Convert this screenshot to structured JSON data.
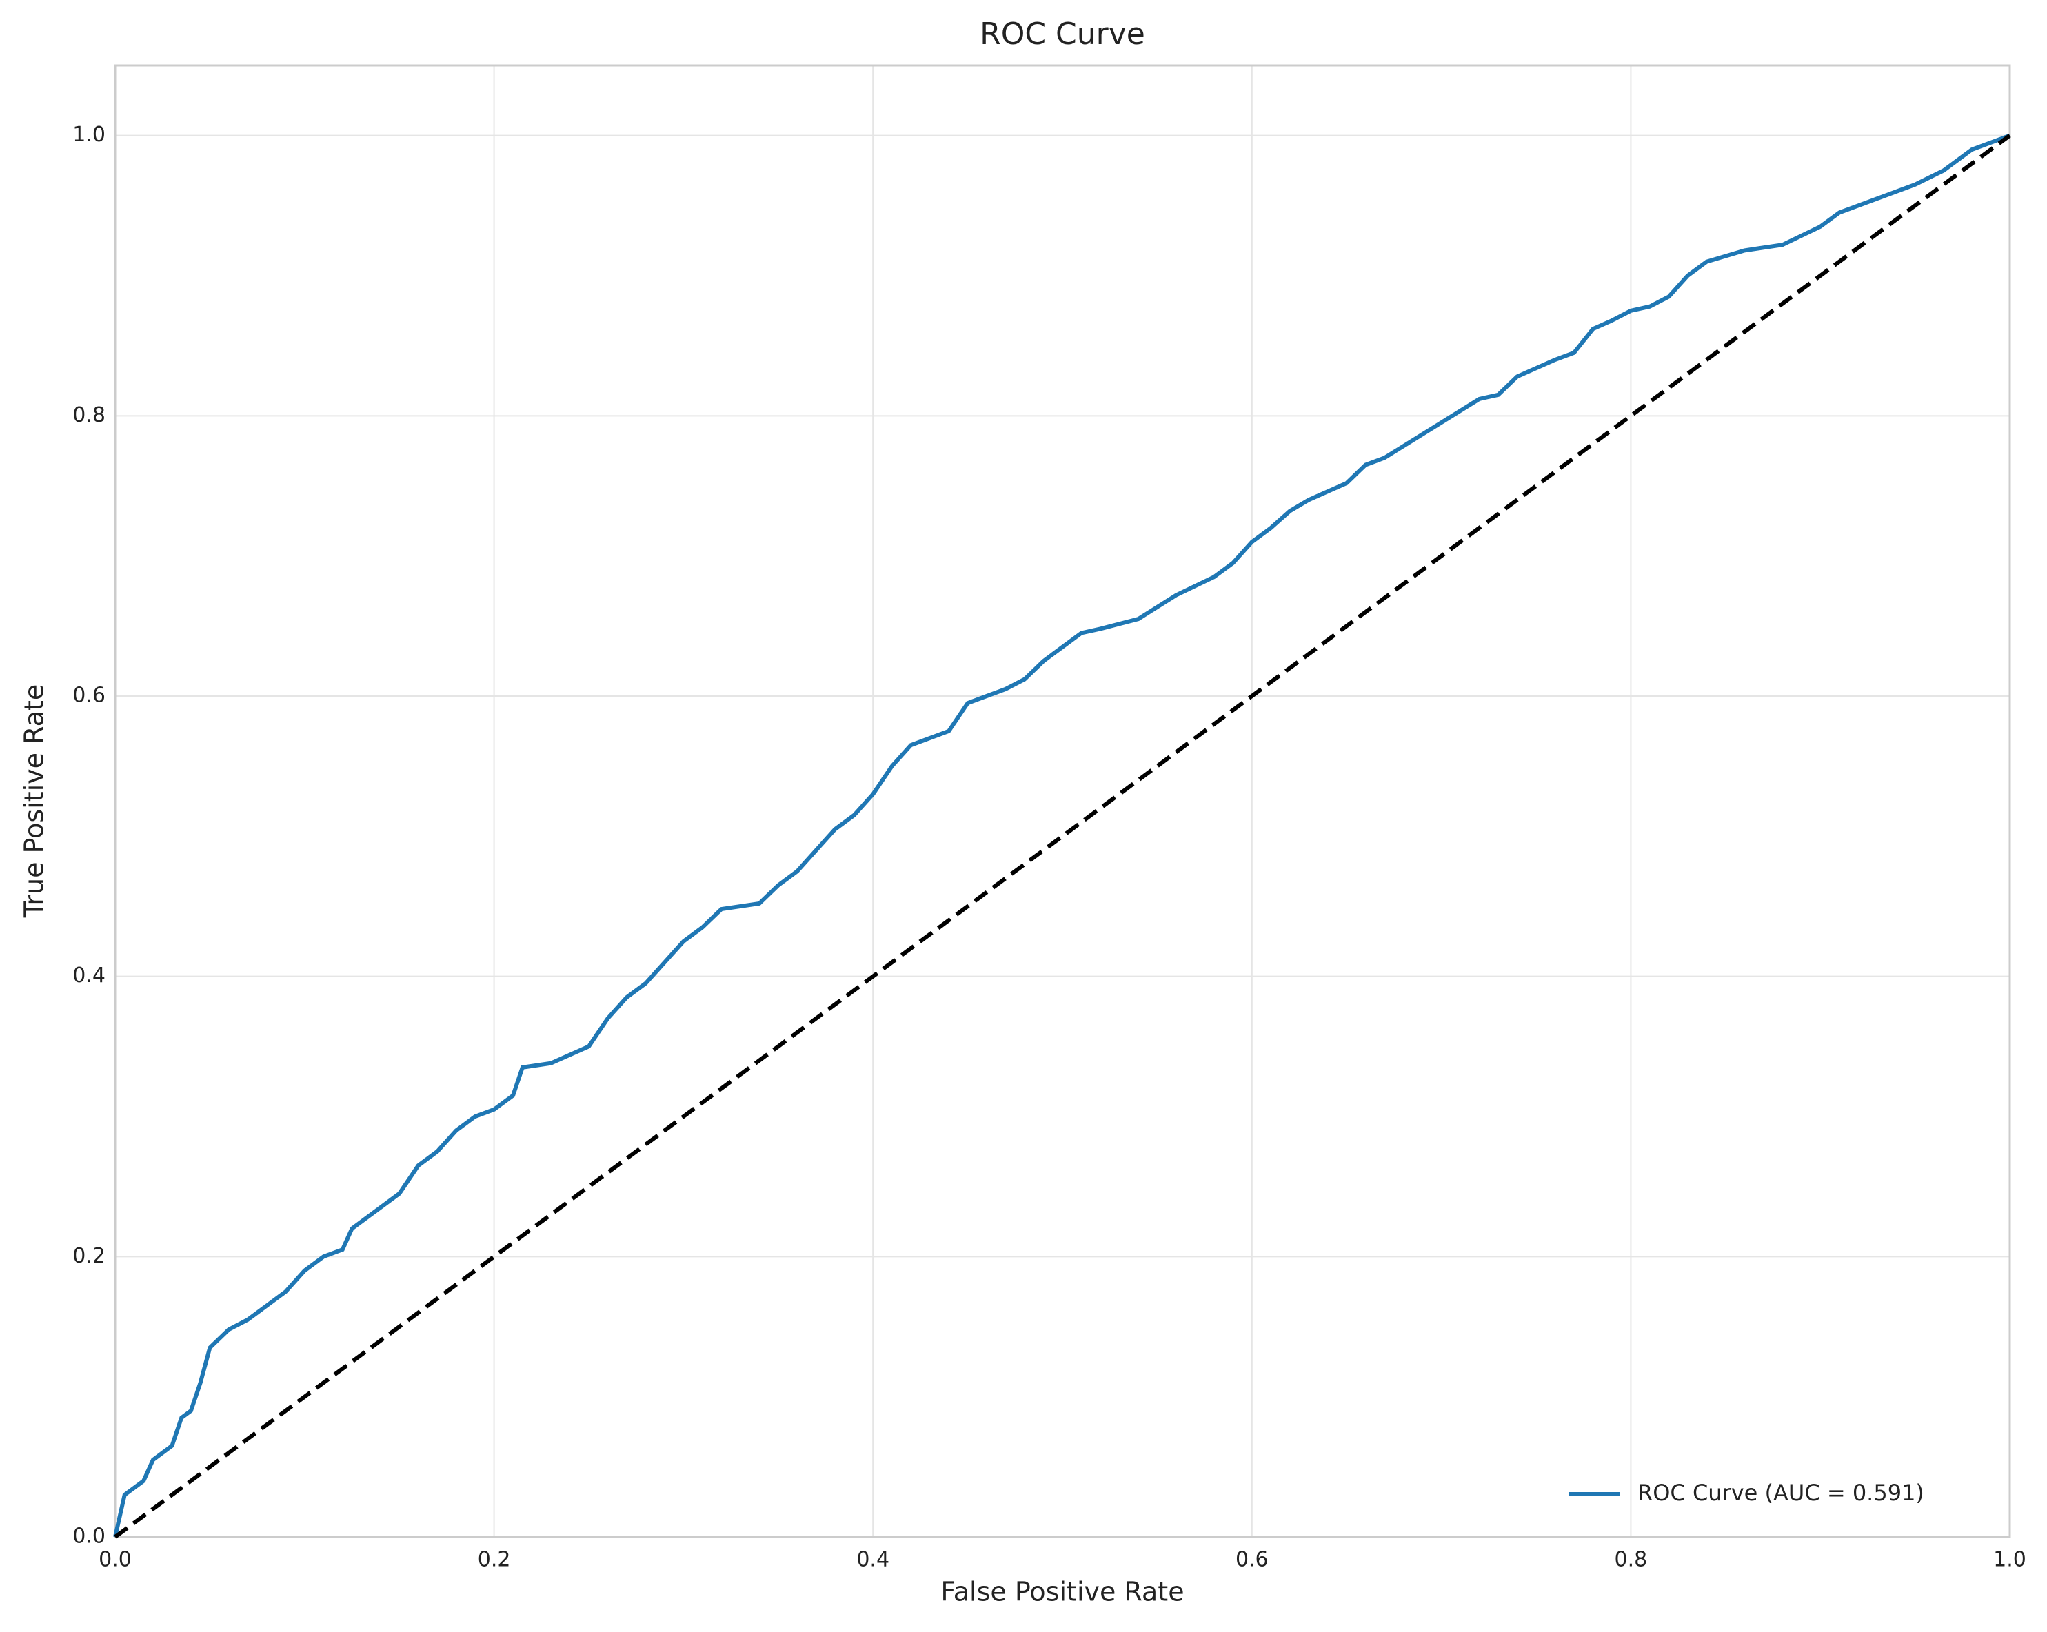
{
  "chart_data": {
    "type": "line",
    "title": "ROC Curve",
    "x_label": "False Positive Rate",
    "y_label": "True Positive Rate",
    "xlim": [
      0,
      1.0
    ],
    "ylim": [
      0,
      1.05
    ],
    "xticks": [
      {
        "value": 0,
        "label": "0.0"
      },
      0.2,
      0.4,
      0.6,
      0.8,
      {
        "value": 1,
        "label": "1.0"
      }
    ],
    "yticks": [
      {
        "value": 0,
        "label": "0.0"
      },
      0.2,
      0.4,
      0.6,
      0.8,
      {
        "value": 1,
        "label": "1.0"
      }
    ],
    "grid": true,
    "legend": "lower right",
    "series": [
      {
        "name": "ROC Curve (AUC = 0.591)",
        "color": "#1f77b4",
        "linestyle": "solid",
        "x": [
          0,
          0.005,
          0.015,
          0.02,
          0.03,
          0.035,
          0.04,
          0.045,
          0.05,
          0.06,
          0.07,
          0.08,
          0.09,
          0.1,
          0.11,
          0.12,
          0.125,
          0.14,
          0.15,
          0.16,
          0.17,
          0.18,
          0.19,
          0.2,
          0.21,
          0.215,
          0.23,
          0.25,
          0.26,
          0.27,
          0.28,
          0.29,
          0.3,
          0.31,
          0.32,
          0.34,
          0.35,
          0.36,
          0.37,
          0.38,
          0.39,
          0.4,
          0.41,
          0.42,
          0.44,
          0.45,
          0.46,
          0.47,
          0.48,
          0.49,
          0.5,
          0.51,
          0.52,
          0.54,
          0.56,
          0.58,
          0.59,
          0.6,
          0.61,
          0.62,
          0.63,
          0.65,
          0.66,
          0.67,
          0.72,
          0.73,
          0.74,
          0.76,
          0.77,
          0.78,
          0.79,
          0.8,
          0.81,
          0.82,
          0.83,
          0.84,
          0.86,
          0.88,
          0.9,
          0.91,
          0.93,
          0.95,
          0.965,
          0.98,
          1.0
        ],
        "values": [
          0,
          0.03,
          0.04,
          0.055,
          0.065,
          0.085,
          0.09,
          0.11,
          0.135,
          0.148,
          0.155,
          0.165,
          0.175,
          0.19,
          0.2,
          0.205,
          0.22,
          0.235,
          0.245,
          0.265,
          0.275,
          0.29,
          0.3,
          0.305,
          0.315,
          0.335,
          0.338,
          0.35,
          0.37,
          0.385,
          0.395,
          0.41,
          0.425,
          0.435,
          0.448,
          0.452,
          0.465,
          0.475,
          0.49,
          0.505,
          0.515,
          0.53,
          0.55,
          0.565,
          0.575,
          0.595,
          0.6,
          0.605,
          0.612,
          0.625,
          0.635,
          0.645,
          0.648,
          0.655,
          0.672,
          0.685,
          0.695,
          0.71,
          0.72,
          0.732,
          0.74,
          0.752,
          0.765,
          0.77,
          0.812,
          0.815,
          0.828,
          0.84,
          0.845,
          0.862,
          0.868,
          0.875,
          0.878,
          0.885,
          0.9,
          0.91,
          0.918,
          0.922,
          0.935,
          0.945,
          0.955,
          0.965,
          0.975,
          0.99,
          1.0
        ]
      },
      {
        "color": "#000000",
        "linestyle": "dashed",
        "x": [
          0,
          1
        ],
        "values": [
          0,
          1
        ]
      }
    ]
  }
}
